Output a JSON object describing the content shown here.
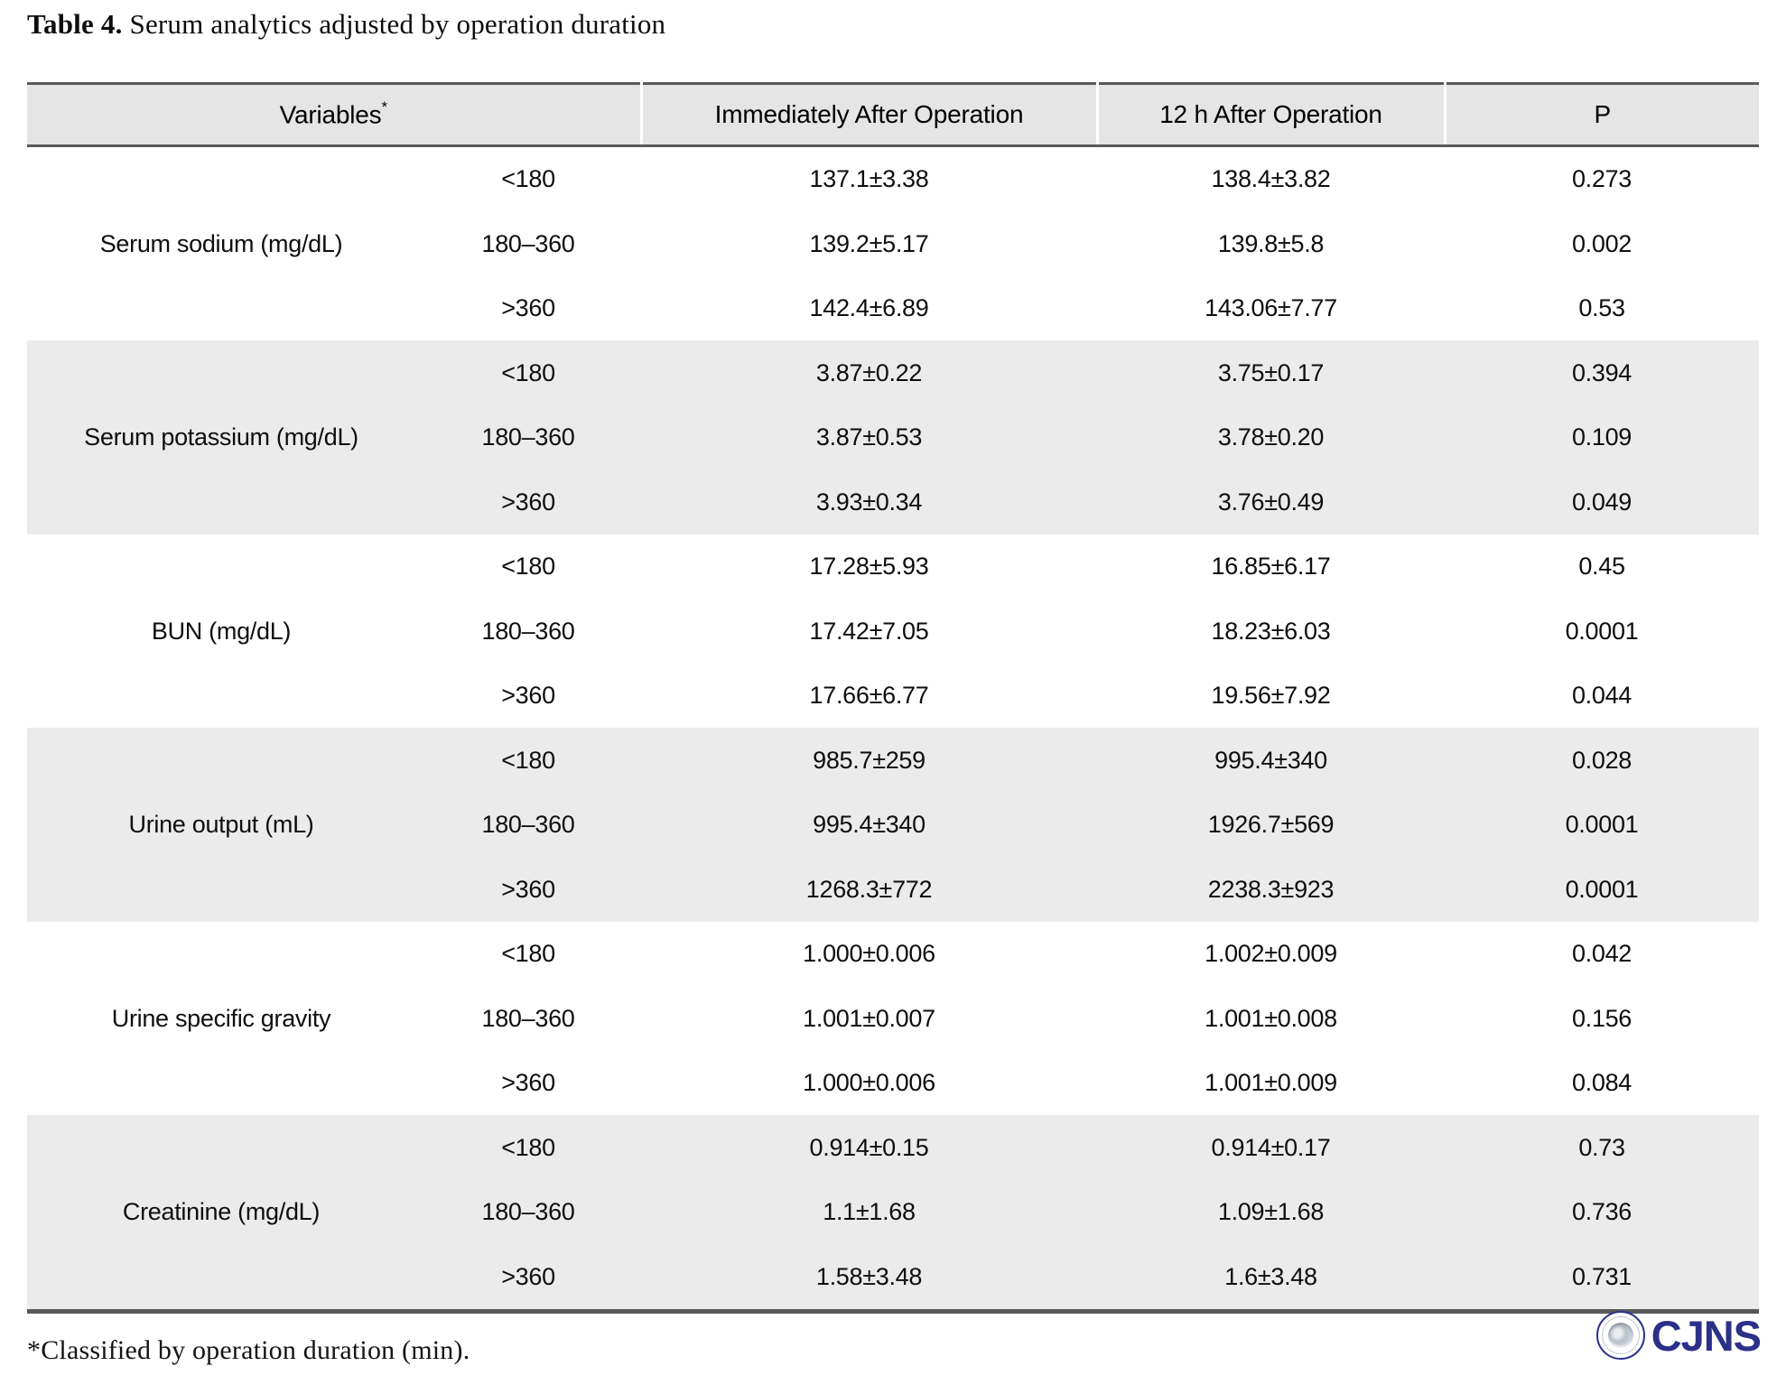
{
  "page": {
    "title_label": "Table 4.",
    "title_text": " Serum analytics adjusted by operation duration",
    "footnote": "*Classified by operation duration (min)."
  },
  "table": {
    "header": {
      "variables": "Variables",
      "variables_sup": "*",
      "immediate": "Immediately After Operation",
      "after12h": "12 h After Operation",
      "p": "P"
    },
    "groups": [
      {
        "variable": "Serum sodium (mg/dL)",
        "rows": [
          {
            "duration": "<180",
            "immediate": "137.1±3.38",
            "after12h": "138.4±3.82",
            "p": "0.273"
          },
          {
            "duration": "180–360",
            "immediate": "139.2±5.17",
            "after12h": "139.8±5.8",
            "p": "0.002"
          },
          {
            "duration": ">360",
            "immediate": "142.4±6.89",
            "after12h": "143.06±7.77",
            "p": "0.53"
          }
        ]
      },
      {
        "variable": "Serum potassium (mg/dL)",
        "rows": [
          {
            "duration": "<180",
            "immediate": "3.87±0.22",
            "after12h": "3.75±0.17",
            "p": "0.394"
          },
          {
            "duration": "180–360",
            "immediate": "3.87±0.53",
            "after12h": "3.78±0.20",
            "p": "0.109"
          },
          {
            "duration": ">360",
            "immediate": "3.93±0.34",
            "after12h": "3.76±0.49",
            "p": "0.049"
          }
        ]
      },
      {
        "variable": "BUN (mg/dL)",
        "rows": [
          {
            "duration": "<180",
            "immediate": "17.28±5.93",
            "after12h": "16.85±6.17",
            "p": "0.45"
          },
          {
            "duration": "180–360",
            "immediate": "17.42±7.05",
            "after12h": "18.23±6.03",
            "p": "0.0001"
          },
          {
            "duration": ">360",
            "immediate": "17.66±6.77",
            "after12h": "19.56±7.92",
            "p": "0.044"
          }
        ]
      },
      {
        "variable": "Urine output (mL)",
        "rows": [
          {
            "duration": "<180",
            "immediate": "985.7±259",
            "after12h": "995.4±340",
            "p": "0.028"
          },
          {
            "duration": "180–360",
            "immediate": "995.4±340",
            "after12h": "1926.7±569",
            "p": "0.0001"
          },
          {
            "duration": ">360",
            "immediate": "1268.3±772",
            "after12h": "2238.3±923",
            "p": "0.0001"
          }
        ]
      },
      {
        "variable": "Urine specific gravity",
        "rows": [
          {
            "duration": "<180",
            "immediate": "1.000±0.006",
            "after12h": "1.002±0.009",
            "p": "0.042"
          },
          {
            "duration": "180–360",
            "immediate": "1.001±0.007",
            "after12h": "1.001±0.008",
            "p": "0.156"
          },
          {
            "duration": ">360",
            "immediate": "1.000±0.006",
            "after12h": "1.001±0.009",
            "p": "0.084"
          }
        ]
      },
      {
        "variable": "Creatinine (mg/dL)",
        "rows": [
          {
            "duration": "<180",
            "immediate": "0.914±0.15",
            "after12h": "0.914±0.17",
            "p": "0.73"
          },
          {
            "duration": "180–360",
            "immediate": "1.1±1.68",
            "after12h": "1.09±1.68",
            "p": "0.736"
          },
          {
            "duration": ">360",
            "immediate": "1.58±3.48",
            "after12h": "1.6±3.48",
            "p": "0.731"
          }
        ]
      }
    ]
  },
  "logo": {
    "text": "CJNS"
  },
  "colors": {
    "header_bg": "#e5e5e5",
    "band_bg": "#ebebeb",
    "border": "#595959",
    "logo": "#2b3189"
  }
}
